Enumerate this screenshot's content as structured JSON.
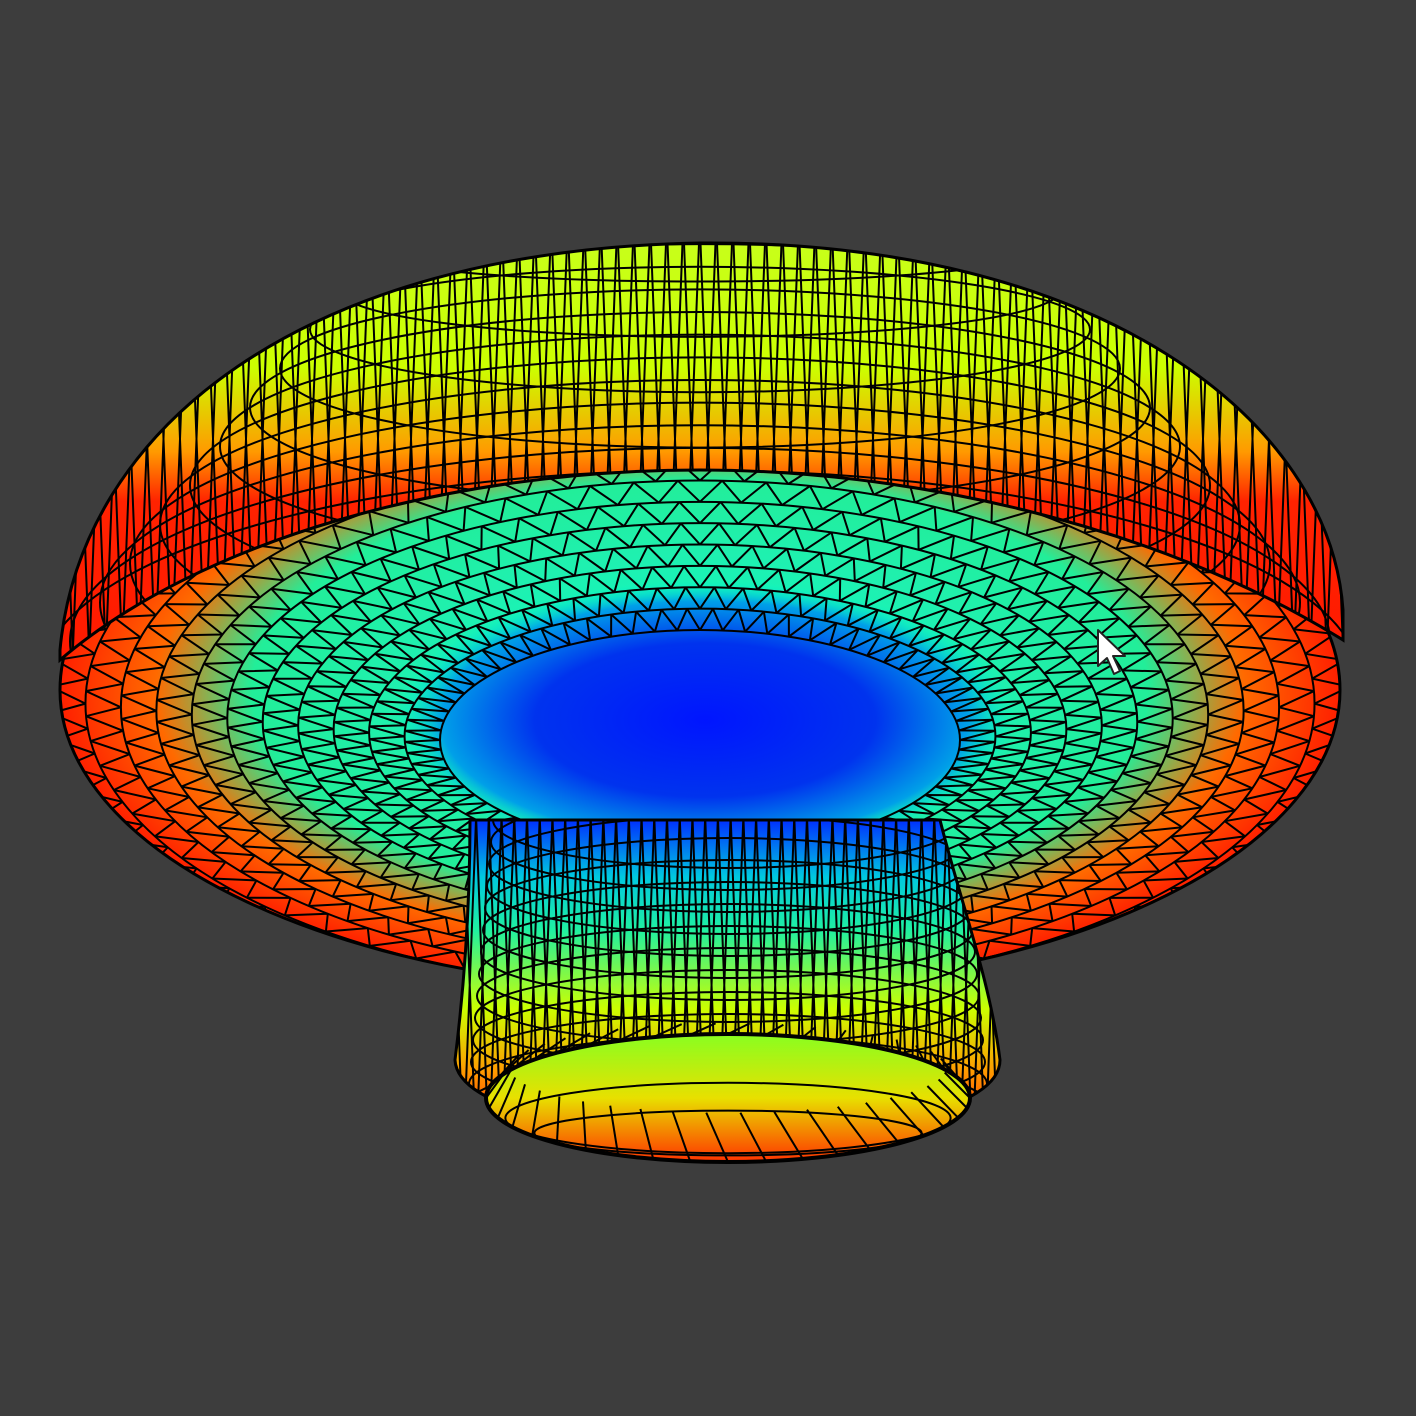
{
  "viewport": {
    "background": "#3d3d3d",
    "object": "mushroom-mesh",
    "render_style": "wireframe-over-colormap",
    "edge_color": "#000000",
    "colormap": [
      "#0000ff",
      "#00ffcc",
      "#22ee99",
      "#ccff00",
      "#ffd000",
      "#ff2a00"
    ]
  },
  "cursor": {
    "icon": "arrow-cursor-icon",
    "color": "#ffffff"
  }
}
